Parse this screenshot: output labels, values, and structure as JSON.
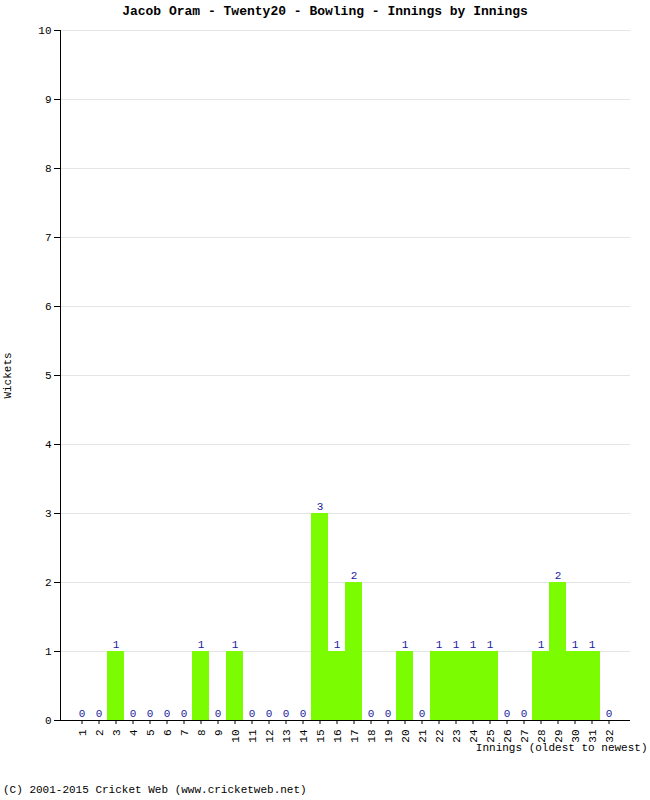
{
  "chart_data": {
    "type": "bar",
    "title": "Jacob Oram - Twenty20 - Bowling - Innings by Innings",
    "xlabel": "Innings (oldest to newest)",
    "ylabel": "Wickets",
    "caption": "(C) 2001-2015 Cricket Web (www.cricketweb.net)",
    "categories": [
      "1",
      "2",
      "3",
      "4",
      "5",
      "6",
      "7",
      "8",
      "9",
      "10",
      "11",
      "12",
      "13",
      "14",
      "15",
      "16",
      "17",
      "18",
      "19",
      "20",
      "21",
      "22",
      "23",
      "24",
      "25",
      "26",
      "27",
      "28",
      "29",
      "30",
      "31",
      "32"
    ],
    "values": [
      0,
      0,
      1,
      0,
      0,
      0,
      0,
      1,
      0,
      1,
      0,
      0,
      0,
      0,
      3,
      1,
      2,
      0,
      0,
      1,
      0,
      1,
      1,
      1,
      1,
      0,
      0,
      1,
      2,
      1,
      1,
      0
    ],
    "color": "#7cfc00",
    "ylim": [
      0,
      10
    ],
    "yticks": [
      0,
      1,
      2,
      3,
      4,
      5,
      6,
      7,
      8,
      9,
      10
    ],
    "grid": true,
    "data_labels": true
  }
}
